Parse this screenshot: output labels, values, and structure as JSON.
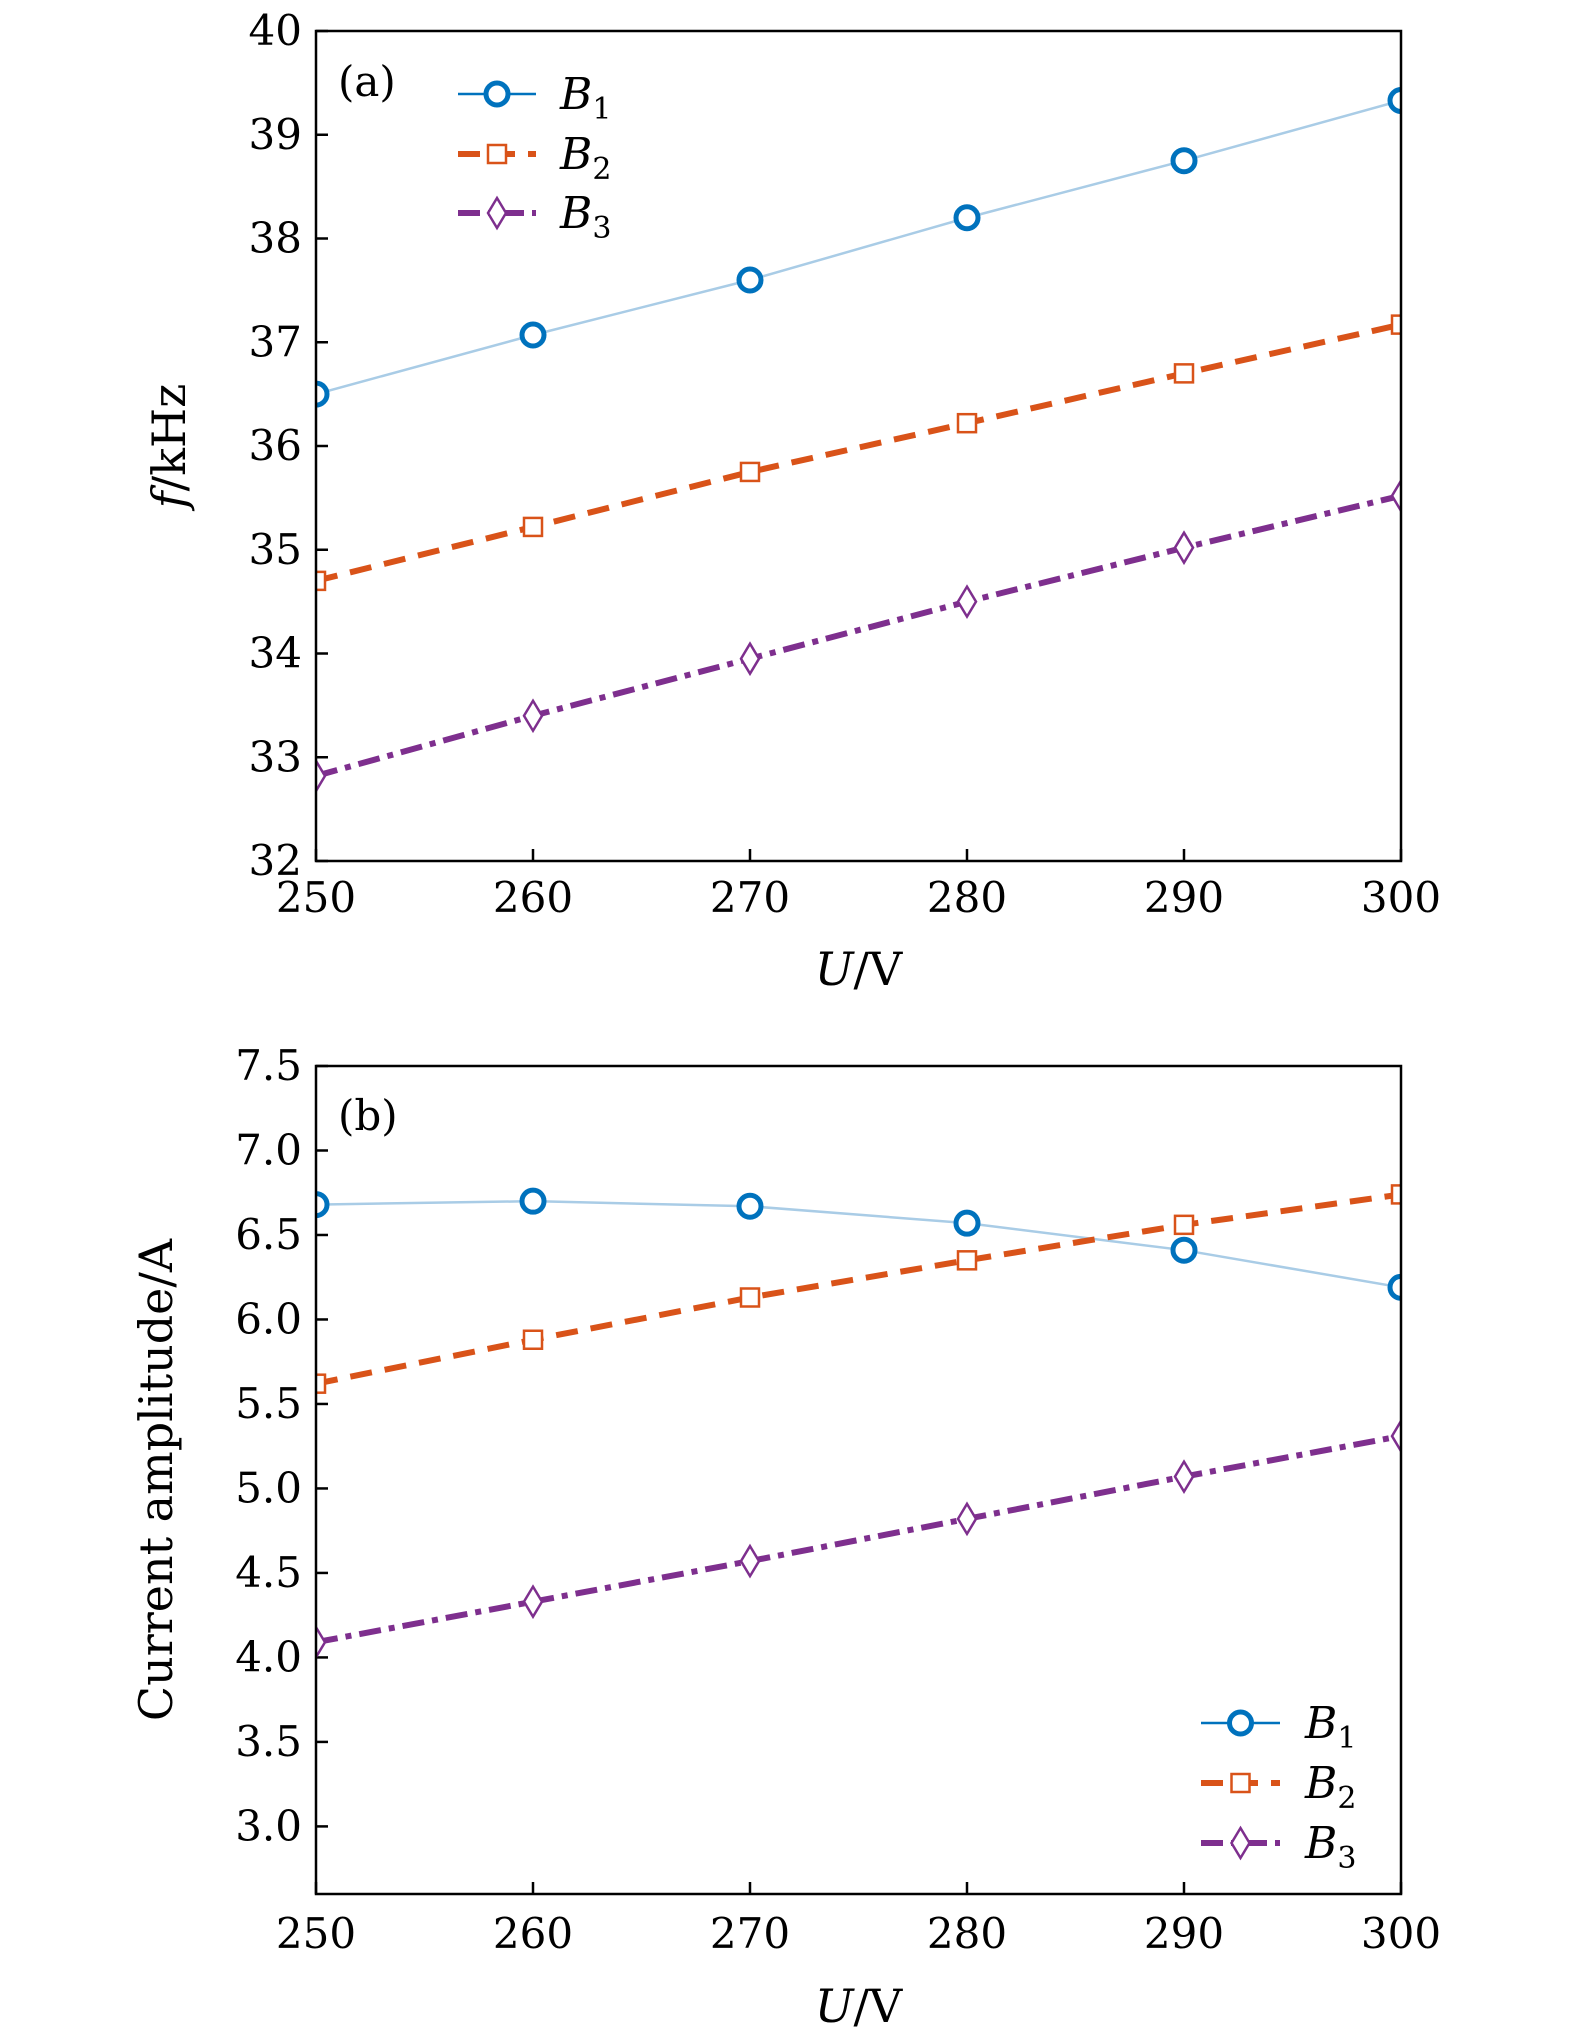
{
  "colors": {
    "B1_marker": "#0072BD",
    "B1_line": "#A9CCE6",
    "B2": "#D95319",
    "B3": "#7E2F8E"
  },
  "chart_data": [
    {
      "type": "line",
      "panel_label": "(a)",
      "xlabel": {
        "italic": "U",
        "rest": "/V"
      },
      "ylabel": {
        "italic": "f",
        "rest": "/kHz"
      },
      "xlim": [
        250,
        300
      ],
      "ylim": [
        32,
        40
      ],
      "xticks": [
        250,
        260,
        270,
        280,
        290,
        300
      ],
      "yticks": [
        32,
        33,
        34,
        35,
        36,
        37,
        38,
        39,
        40
      ],
      "ytick_decimals": 0,
      "legend_position": "top-left",
      "x": [
        250,
        260,
        270,
        280,
        290,
        300
      ],
      "series": [
        {
          "name": "B1",
          "base": "B",
          "sub": "1",
          "marker": "circle",
          "style": "solid",
          "values": [
            36.5,
            37.07,
            37.6,
            38.2,
            38.75,
            39.33
          ]
        },
        {
          "name": "B2",
          "base": "B",
          "sub": "2",
          "marker": "square",
          "style": "dashed",
          "values": [
            34.7,
            35.22,
            35.75,
            36.22,
            36.7,
            37.17
          ]
        },
        {
          "name": "B3",
          "base": "B",
          "sub": "3",
          "marker": "diamond",
          "style": "dashdot",
          "values": [
            32.82,
            33.4,
            33.95,
            34.5,
            35.02,
            35.52
          ]
        }
      ]
    },
    {
      "type": "line",
      "panel_label": "(b)",
      "xlabel": {
        "italic": "U",
        "rest": "/V"
      },
      "ylabel": {
        "italic": "",
        "rest": "Current amplitude/A"
      },
      "xlim": [
        250,
        300
      ],
      "ylim": [
        2.6,
        7.5
      ],
      "xticks": [
        250,
        260,
        270,
        280,
        290,
        300
      ],
      "yticks": [
        3.0,
        3.5,
        4.0,
        4.5,
        5.0,
        5.5,
        6.0,
        6.5,
        7.0,
        7.5
      ],
      "ytick_decimals": 1,
      "legend_position": "bottom-right",
      "x": [
        250,
        260,
        270,
        280,
        290,
        300
      ],
      "series": [
        {
          "name": "B1",
          "base": "B",
          "sub": "1",
          "marker": "circle",
          "style": "solid",
          "values": [
            6.68,
            6.7,
            6.67,
            6.57,
            6.41,
            6.19
          ]
        },
        {
          "name": "B2",
          "base": "B",
          "sub": "2",
          "marker": "square",
          "style": "dashed",
          "values": [
            5.62,
            5.88,
            6.13,
            6.35,
            6.56,
            6.74
          ]
        },
        {
          "name": "B3",
          "base": "B",
          "sub": "3",
          "marker": "diamond",
          "style": "dashdot",
          "values": [
            4.09,
            4.33,
            4.57,
            4.82,
            5.07,
            5.31
          ]
        }
      ]
    }
  ]
}
